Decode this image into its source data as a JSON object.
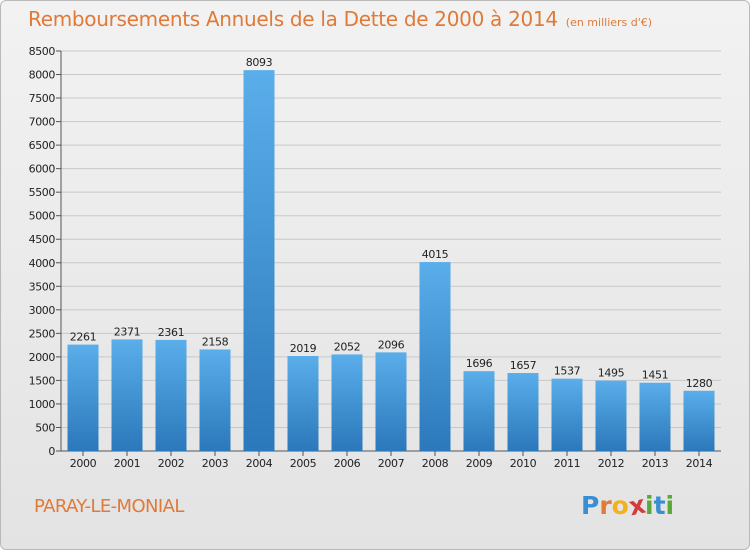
{
  "header": {
    "title": "Remboursements Annuels de la Dette de 2000 à 2014",
    "subtitle": "(en milliers d'€)"
  },
  "footer": {
    "city": "PARAY-LE-MONIAL",
    "brand_letters": [
      "P",
      "r",
      "o",
      "x",
      "i",
      "t",
      "i"
    ],
    "brand_colors": [
      "#3a8fd3",
      "#e07a38",
      "#f2b21b",
      "#d43b3b",
      "#5aa83a",
      "#3a8fd3",
      "#5aa83a"
    ]
  },
  "colors": {
    "title": "#e07a38",
    "bar_light": "#5aaeea",
    "bar_dark": "#2b78ba"
  },
  "chart_data": {
    "type": "bar",
    "title": "Remboursements Annuels de la Dette de 2000 à 2014",
    "categories": [
      "2000",
      "2001",
      "2002",
      "2003",
      "2004",
      "2005",
      "2006",
      "2007",
      "2008",
      "2009",
      "2010",
      "2011",
      "2012",
      "2013",
      "2014"
    ],
    "values": [
      2261,
      2371,
      2361,
      2158,
      8093,
      2019,
      2052,
      2096,
      4015,
      1696,
      1657,
      1537,
      1495,
      1451,
      1280
    ],
    "value_labels": [
      "2261",
      "2371",
      "2361",
      "2158",
      "8093",
      "2019",
      "2052",
      "2096",
      "4015",
      "1696",
      "1657",
      "1537",
      "1495",
      "1451",
      "1280"
    ],
    "ylim": [
      0,
      8500
    ],
    "yticks": [
      0,
      500,
      1000,
      1500,
      2000,
      2500,
      3000,
      3500,
      4000,
      4500,
      5000,
      5500,
      6000,
      6500,
      7000,
      7500,
      8000,
      8500
    ],
    "ytick_labels": [
      "0",
      "500",
      "1000",
      "1500",
      "2000",
      "2500",
      "3000",
      "3500",
      "4000",
      "4500",
      "5000",
      "5500",
      "6000",
      "6500",
      "7000",
      "7500",
      "8000",
      "8500"
    ],
    "grid": true,
    "legend": "none"
  }
}
